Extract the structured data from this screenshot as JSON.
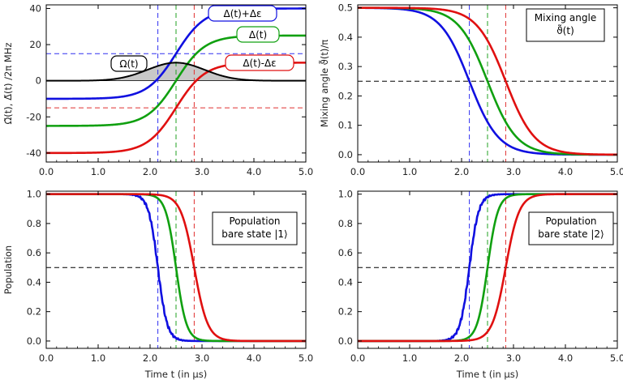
{
  "chart_data": [
    {
      "type": "line",
      "ylabel": "Ω̃(t), Δ̃(t) /2π MHz",
      "xlabel": "",
      "xlim": [
        0,
        5
      ],
      "ylim": [
        -45,
        42
      ],
      "x_ticks": [
        "0.0",
        "1.0",
        "2.0",
        "3.0",
        "4.0",
        "5.0"
      ],
      "x_tick_values": [
        0,
        1,
        2,
        3,
        4,
        5
      ],
      "y_ticks": [
        "-40",
        "-20",
        "0",
        "20",
        "40"
      ],
      "y_tick_values": [
        -40,
        -20,
        0,
        20,
        40
      ],
      "series": [
        {
          "name": "Δ(t)+Δε",
          "color": "#1010e0",
          "center": 2.5,
          "width": 0.28,
          "y_from": -10,
          "y_to": 40
        },
        {
          "name": "Δ(t)",
          "color": "#10a010",
          "center": 2.5,
          "width": 0.28,
          "y_from": -25,
          "y_to": 25
        },
        {
          "name": "Δ(t)-Δε",
          "color": "#e01010",
          "center": 2.5,
          "width": 0.28,
          "y_from": -40,
          "y_to": 10
        },
        {
          "name": "Ω(t)",
          "color": "#000000",
          "gaussian_center": 2.5,
          "gaussian_sigma": 0.55,
          "peak": 10,
          "filled": true
        }
      ],
      "vlines": [
        {
          "x": 2.15,
          "color": "#3030f0"
        },
        {
          "x": 2.5,
          "color": "#20a020"
        },
        {
          "x": 2.85,
          "color": "#e03030"
        }
      ],
      "hlines": [
        {
          "y": 15,
          "color": "#3030f0"
        },
        {
          "y": -15,
          "color": "#e03030"
        }
      ]
    },
    {
      "type": "line",
      "ylabel": "Mixing angle ϑ̃(t)/π",
      "xlabel": "",
      "xlim": [
        0,
        5
      ],
      "ylim": [
        -0.025,
        0.51
      ],
      "x_ticks": [
        "0.0",
        "1.0",
        "2.0",
        "3.0",
        "4.0",
        "5.0"
      ],
      "x_tick_values": [
        0,
        1,
        2,
        3,
        4,
        5
      ],
      "y_ticks": [
        "0.0",
        "0.1",
        "0.2",
        "0.3",
        "0.4",
        "0.5"
      ],
      "y_tick_values": [
        0,
        0.1,
        0.2,
        0.3,
        0.4,
        0.5
      ],
      "annotation": [
        "Mixing angle",
        "ϑ̃(t)"
      ],
      "series": [
        {
          "name": "",
          "color": "#1010e0",
          "center": 2.15,
          "width": 0.28,
          "y_from": 0.5,
          "y_to": 0
        },
        {
          "name": "",
          "color": "#10a010",
          "center": 2.5,
          "width": 0.28,
          "y_from": 0.5,
          "y_to": 0
        },
        {
          "name": "",
          "color": "#e01010",
          "center": 2.85,
          "width": 0.28,
          "y_from": 0.5,
          "y_to": 0
        }
      ],
      "vlines": [
        {
          "x": 2.15,
          "color": "#3030f0"
        },
        {
          "x": 2.5,
          "color": "#20a020"
        },
        {
          "x": 2.85,
          "color": "#e03030"
        }
      ],
      "hlines": [
        {
          "y": 0.25,
          "color": "#000000"
        }
      ]
    },
    {
      "type": "line",
      "ylabel": "Population",
      "xlabel": "Time t (in μs)",
      "xlim": [
        0,
        5
      ],
      "ylim": [
        -0.05,
        1.02
      ],
      "x_ticks": [
        "0.0",
        "1.0",
        "2.0",
        "3.0",
        "4.0",
        "5.0"
      ],
      "x_tick_values": [
        0,
        1,
        2,
        3,
        4,
        5
      ],
      "y_ticks": [
        "0.0",
        "0.2",
        "0.4",
        "0.6",
        "0.8",
        "1.0"
      ],
      "y_tick_values": [
        0,
        0.2,
        0.4,
        0.6,
        0.8,
        1.0
      ],
      "annotation": [
        "Population",
        "bare state |1⟩"
      ],
      "series": [
        {
          "name": "",
          "color": "#1010e0",
          "center": 2.15,
          "width": 0.09,
          "y_from": 1,
          "y_to": 0,
          "noisy": true
        },
        {
          "name": "",
          "color": "#10a010",
          "center": 2.5,
          "width": 0.1,
          "y_from": 1,
          "y_to": 0
        },
        {
          "name": "",
          "color": "#e01010",
          "center": 2.85,
          "width": 0.13,
          "y_from": 1,
          "y_to": 0
        }
      ],
      "vlines": [
        {
          "x": 2.15,
          "color": "#3030f0"
        },
        {
          "x": 2.5,
          "color": "#20a020"
        },
        {
          "x": 2.85,
          "color": "#e03030"
        }
      ],
      "hlines": [
        {
          "y": 0.5,
          "color": "#000000"
        }
      ]
    },
    {
      "type": "line",
      "ylabel": "",
      "xlabel": "Time t (in μs)",
      "xlim": [
        0,
        5
      ],
      "ylim": [
        -0.05,
        1.02
      ],
      "x_ticks": [
        "0.0",
        "1.0",
        "2.0",
        "3.0",
        "4.0",
        "5.0"
      ],
      "x_tick_values": [
        0,
        1,
        2,
        3,
        4,
        5
      ],
      "y_ticks": [
        "0.0",
        "0.2",
        "0.4",
        "0.6",
        "0.8",
        "1.0"
      ],
      "y_tick_values": [
        0,
        0.2,
        0.4,
        0.6,
        0.8,
        1.0
      ],
      "annotation": [
        "Population",
        "bare state |2⟩"
      ],
      "series": [
        {
          "name": "",
          "color": "#1010e0",
          "center": 2.15,
          "width": 0.09,
          "y_from": 0,
          "y_to": 1,
          "noisy": true
        },
        {
          "name": "",
          "color": "#10a010",
          "center": 2.5,
          "width": 0.1,
          "y_from": 0,
          "y_to": 1
        },
        {
          "name": "",
          "color": "#e01010",
          "center": 2.85,
          "width": 0.13,
          "y_from": 0,
          "y_to": 1
        }
      ],
      "vlines": [
        {
          "x": 2.15,
          "color": "#3030f0"
        },
        {
          "x": 2.5,
          "color": "#20a020"
        },
        {
          "x": 2.85,
          "color": "#e03030"
        }
      ],
      "hlines": [
        {
          "y": 0.5,
          "color": "#000000"
        }
      ]
    }
  ]
}
